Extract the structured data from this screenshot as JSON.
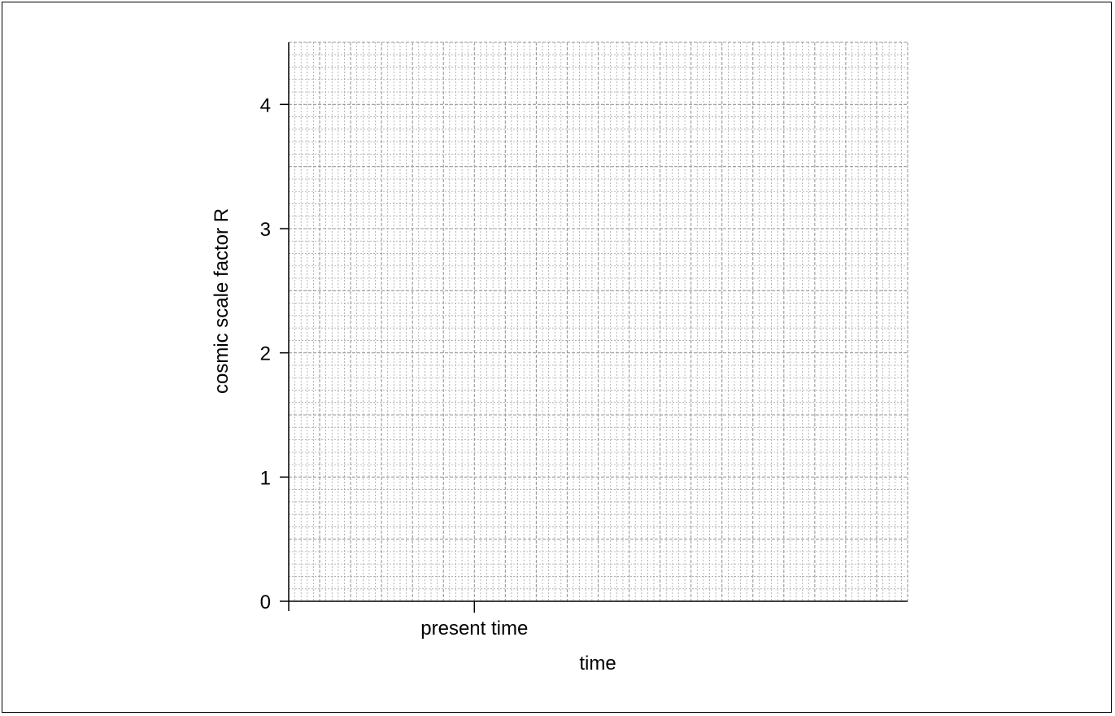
{
  "chart_data": {
    "type": "line",
    "title": "",
    "xlabel": "time",
    "ylabel": "cosmic scale factor R",
    "ylim": [
      0,
      4.5
    ],
    "yticks": [
      "0",
      "1",
      "2",
      "3",
      "4"
    ],
    "xticks": [
      "present time"
    ],
    "xlim": [
      0,
      10
    ],
    "present_time_x": 3,
    "grid": "on",
    "series": []
  },
  "colors": {
    "axis": "#000000",
    "grid": "#9a9a9a"
  }
}
